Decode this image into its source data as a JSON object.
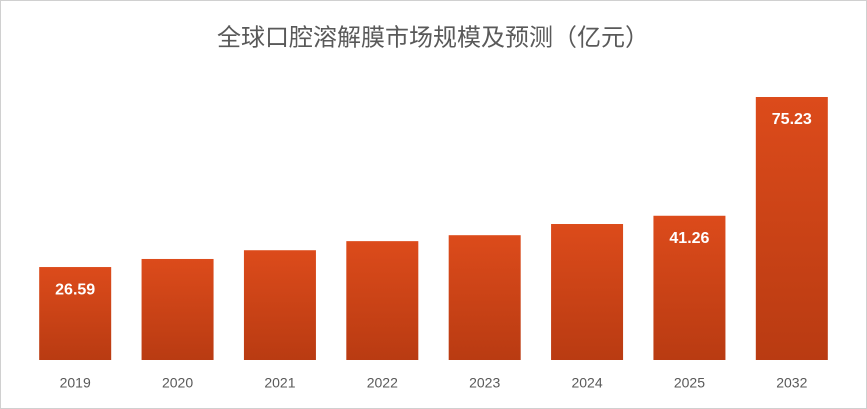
{
  "chart_data": {
    "type": "bar",
    "title": "全球口腔溶解膜市场规模及预测（亿元）",
    "categories": [
      "2019",
      "2020",
      "2021",
      "2022",
      "2023",
      "2024",
      "2025",
      "2032"
    ],
    "values": [
      26.59,
      28.9,
      31.4,
      34.0,
      35.7,
      38.9,
      41.26,
      75.23
    ],
    "value_labels": [
      "26.59",
      null,
      null,
      null,
      null,
      null,
      "41.26",
      "75.23"
    ],
    "color": "#d2451a"
  }
}
